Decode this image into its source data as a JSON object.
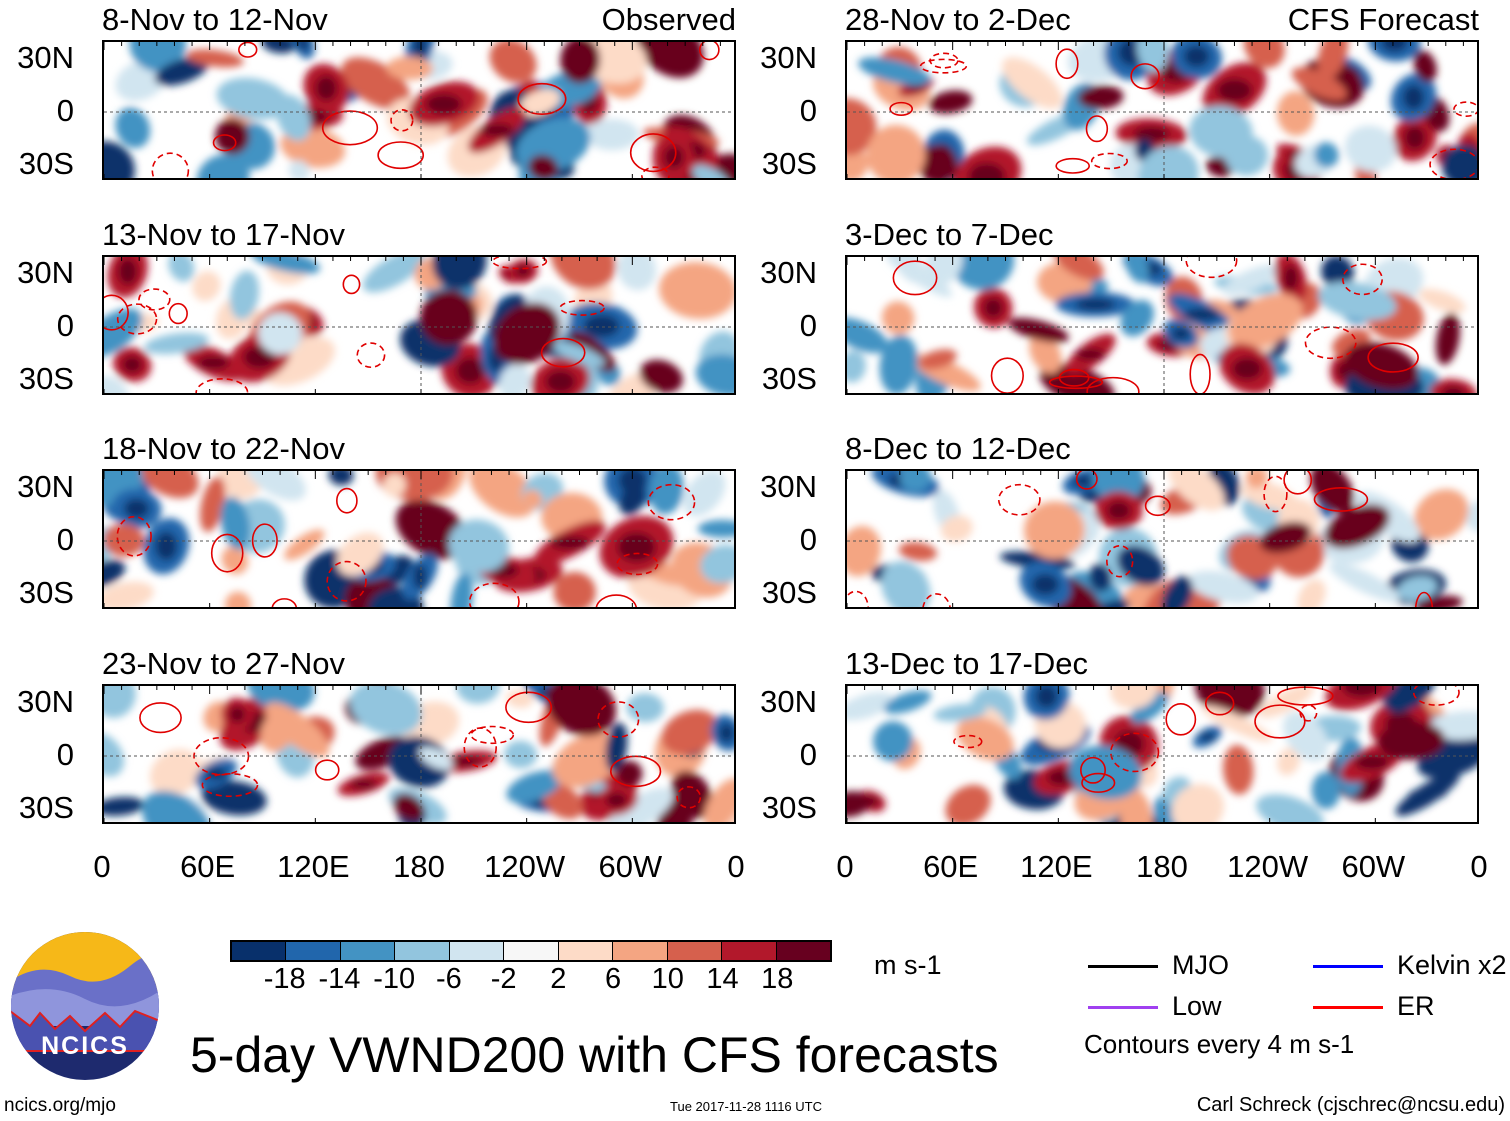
{
  "chart_data": {
    "type": "heatmap",
    "title": "5-day VWND200 with CFS forecasts",
    "variable": "200-hPa meridional wind anomaly",
    "units": "m s-1",
    "left_column_label": "Observed",
    "right_column_label": "CFS Forecast",
    "panels_left": [
      "8-Nov to 12-Nov",
      "13-Nov to 17-Nov",
      "18-Nov to 22-Nov",
      "23-Nov to 27-Nov"
    ],
    "panels_right": [
      "28-Nov to 2-Dec",
      "3-Dec to 7-Dec",
      "8-Dec to 12-Dec",
      "13-Dec to 17-Dec"
    ],
    "lat_ticks": [
      "30N",
      "0",
      "30S"
    ],
    "lon_ticks": [
      "0",
      "60E",
      "120E",
      "180",
      "120W",
      "60W",
      "0"
    ],
    "colorbar": {
      "levels": [
        "-18",
        "-14",
        "-10",
        "-6",
        "-2",
        "2",
        "6",
        "10",
        "14",
        "18"
      ],
      "colors": [
        "#08306b",
        "#2166ac",
        "#4393c3",
        "#92c5de",
        "#d1e5f0",
        "#f7f7f7",
        "#fddbc7",
        "#f4a582",
        "#d6604d",
        "#b2182b",
        "#67001f"
      ]
    },
    "legend": [
      {
        "label": "MJO",
        "color": "#000000"
      },
      {
        "label": "Kelvin x2",
        "color": "#0000ff"
      },
      {
        "label": "Low",
        "color": "#a040f0"
      },
      {
        "label": "ER",
        "color": "#ff0000"
      }
    ],
    "contour_note": "Contours every 4 m s-1"
  },
  "footer": {
    "logo_text": "NCICS",
    "url": "ncics.org/mjo",
    "timestamp": "Tue 2017-11-28 1116 UTC",
    "credit": "Carl Schreck (cjschrec@ncsu.edu)"
  }
}
